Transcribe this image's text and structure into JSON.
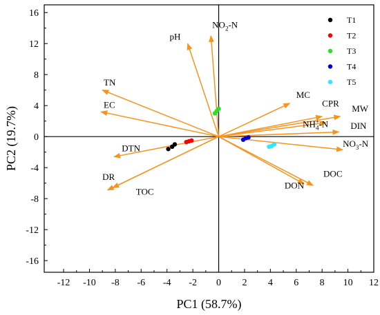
{
  "chart_data": {
    "type": "scatter",
    "subtype": "pca-biplot",
    "title": "",
    "xlabel": "PC1 (58.7%)",
    "ylabel": "PC2 (19.7%)",
    "xlim": [
      -13.5,
      12
    ],
    "ylim": [
      -17.5,
      17
    ],
    "xticks": [
      -12,
      -10,
      -8,
      -6,
      -4,
      -2,
      0,
      2,
      4,
      6,
      8,
      10,
      12
    ],
    "yticks": [
      -16,
      -12,
      -8,
      -4,
      0,
      4,
      8,
      12,
      16
    ],
    "grid": false,
    "zero_lines": true,
    "legend_placement": "top-right",
    "arrow_color": "#f7941d",
    "loadings": [
      {
        "label": "NO2-N",
        "main": "NO",
        "sub": "2",
        "suffix": "-N",
        "x": -0.6,
        "y": 13.0,
        "lx": -0.5,
        "ly": 14.0
      },
      {
        "label": "pH",
        "main": "pH",
        "x": -2.4,
        "y": 12.0,
        "lx": -3.8,
        "ly": 12.5
      },
      {
        "label": "TN",
        "main": "TN",
        "x": -9.0,
        "y": 6.0,
        "lx": -8.9,
        "ly": 6.6
      },
      {
        "label": "EC",
        "main": "EC",
        "x": -9.1,
        "y": 3.2,
        "lx": -8.9,
        "ly": 3.7
      },
      {
        "label": "DTN",
        "main": "DTN",
        "x": -8.1,
        "y": -2.6,
        "lx": -7.5,
        "ly": -1.9
      },
      {
        "label": "DR",
        "main": "DR",
        "x": -8.6,
        "y": -6.9,
        "lx": -9.0,
        "ly": -5.6
      },
      {
        "label": "TOC",
        "main": "TOC",
        "x": -8.2,
        "y": -6.6,
        "lx": -6.4,
        "ly": -7.5
      },
      {
        "label": "MC",
        "main": "MC",
        "x": 5.5,
        "y": 4.3,
        "lx": 6.0,
        "ly": 5.0
      },
      {
        "label": "CPR",
        "main": "CPR",
        "x": 8.0,
        "y": 2.6,
        "lx": 8.0,
        "ly": 3.9
      },
      {
        "label": "MW",
        "main": "MW",
        "x": 9.4,
        "y": 2.6,
        "lx": 10.3,
        "ly": 3.2
      },
      {
        "label": "NH4+-N",
        "main": "NH",
        "sub": "4",
        "sup": "+",
        "suffix": "-N",
        "x": 8.3,
        "y": 1.8,
        "lx": 6.5,
        "ly": 1.2
      },
      {
        "label": "DIN",
        "main": "DIN",
        "x": 9.3,
        "y": 0.6,
        "lx": 10.2,
        "ly": 1.0
      },
      {
        "label": "NO3-N",
        "main": "NO",
        "sub": "3",
        "suffix": "-N",
        "x": 9.6,
        "y": -1.7,
        "lx": 9.6,
        "ly": -1.3
      },
      {
        "label": "DOC",
        "main": "DOC",
        "x": 7.3,
        "y": -6.3,
        "lx": 8.1,
        "ly": -5.2
      },
      {
        "label": "DON",
        "main": "DON",
        "x": 6.6,
        "y": -6.1,
        "lx": 5.1,
        "ly": -6.7
      }
    ],
    "series": [
      {
        "name": "T1",
        "color": "#000000",
        "points": [
          [
            -3.9,
            -1.6
          ],
          [
            -3.6,
            -1.3
          ],
          [
            -3.4,
            -1.0
          ]
        ]
      },
      {
        "name": "T2",
        "color": "#ff0000",
        "points": [
          [
            -2.5,
            -0.7
          ],
          [
            -2.3,
            -0.6
          ],
          [
            -2.1,
            -0.5
          ]
        ]
      },
      {
        "name": "T3",
        "color": "#2adf2a",
        "points": [
          [
            -0.3,
            3.0
          ],
          [
            -0.15,
            3.3
          ],
          [
            0.0,
            3.6
          ]
        ]
      },
      {
        "name": "T4",
        "color": "#0000cc",
        "points": [
          [
            1.9,
            -0.4
          ],
          [
            2.1,
            -0.2
          ],
          [
            2.3,
            -0.1
          ]
        ]
      },
      {
        "name": "T5",
        "color": "#33e5ff",
        "points": [
          [
            3.9,
            -1.3
          ],
          [
            4.1,
            -1.2
          ],
          [
            4.3,
            -1.0
          ]
        ]
      }
    ]
  }
}
